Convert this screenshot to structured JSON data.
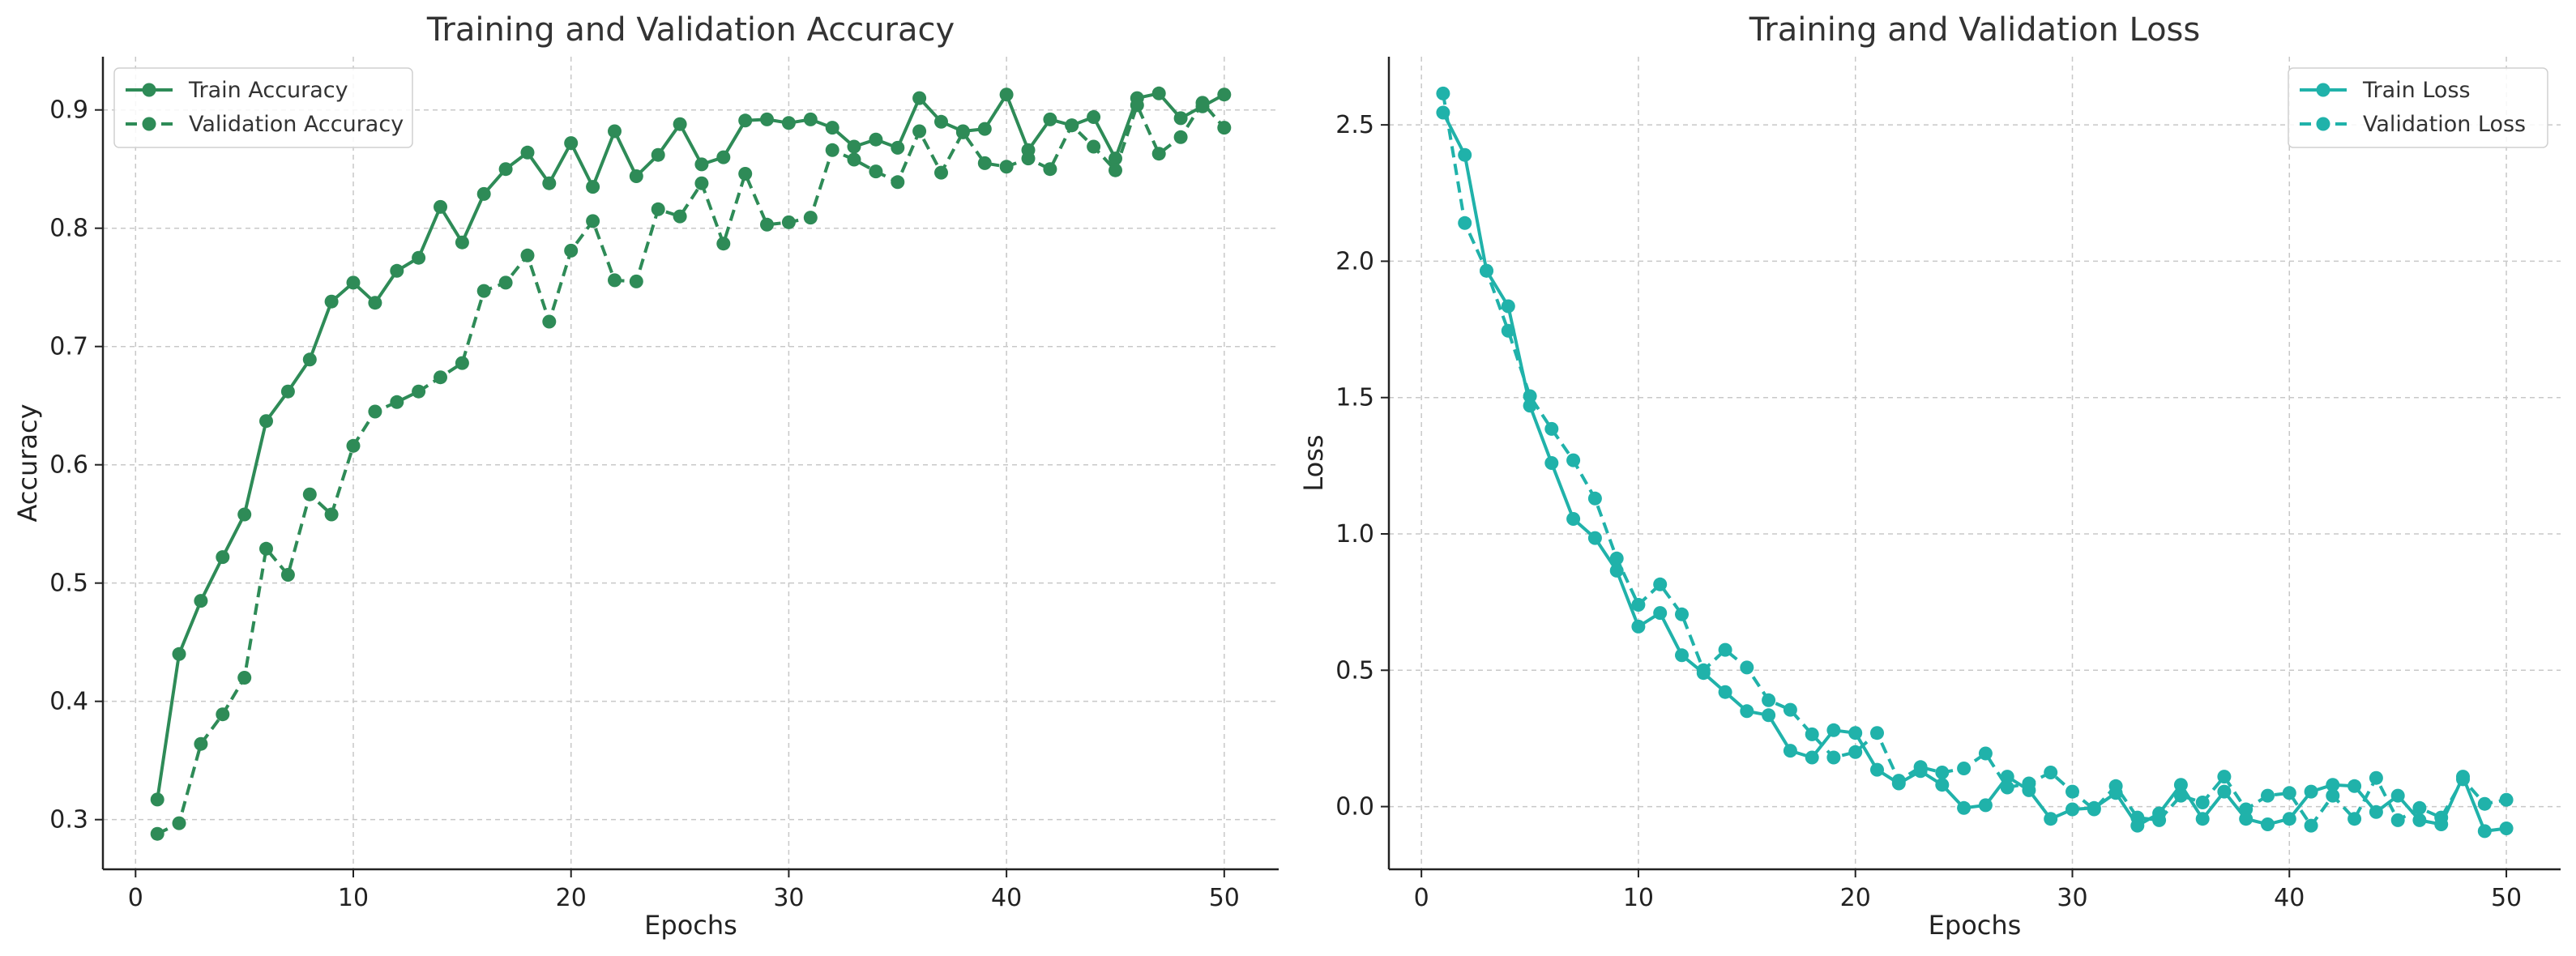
{
  "colors": {
    "accuracy": "#2e8b57",
    "loss": "#20b2aa"
  },
  "chart_data": [
    {
      "type": "line",
      "title": "Training and Validation Accuracy",
      "xlabel": "Epochs",
      "ylabel": "Accuracy",
      "xlim": [
        -1.5,
        52.5
      ],
      "ylim": [
        0.258,
        0.945
      ],
      "xticks": [
        0,
        10,
        20,
        30,
        40,
        50
      ],
      "yticks": [
        0.3,
        0.4,
        0.5,
        0.6,
        0.7,
        0.8,
        0.9
      ],
      "grid": true,
      "legend_position": "upper-left",
      "x": [
        1,
        2,
        3,
        4,
        5,
        6,
        7,
        8,
        9,
        10,
        11,
        12,
        13,
        14,
        15,
        16,
        17,
        18,
        19,
        20,
        21,
        22,
        23,
        24,
        25,
        26,
        27,
        28,
        29,
        30,
        31,
        32,
        33,
        34,
        35,
        36,
        37,
        38,
        39,
        40,
        41,
        42,
        43,
        44,
        45,
        46,
        47,
        48,
        49,
        50
      ],
      "series": [
        {
          "name": "Train Accuracy",
          "style": "solid",
          "color": "#2e8b57",
          "values": [
            0.317,
            0.44,
            0.485,
            0.522,
            0.558,
            0.637,
            0.662,
            0.689,
            0.738,
            0.754,
            0.737,
            0.764,
            0.775,
            0.818,
            0.788,
            0.829,
            0.85,
            0.864,
            0.838,
            0.872,
            0.835,
            0.882,
            0.844,
            0.862,
            0.888,
            0.854,
            0.86,
            0.891,
            0.892,
            0.889,
            0.892,
            0.885,
            0.869,
            0.875,
            0.868,
            0.91,
            0.89,
            0.882,
            0.884,
            0.913,
            0.866,
            0.892,
            0.887,
            0.894,
            0.859,
            0.91,
            0.914,
            0.893,
            0.903,
            0.913
          ]
        },
        {
          "name": "Validation Accuracy",
          "style": "dashed",
          "color": "#2e8b57",
          "values": [
            0.288,
            0.297,
            0.364,
            0.389,
            0.42,
            0.529,
            0.507,
            0.575,
            0.558,
            0.616,
            0.645,
            0.653,
            0.662,
            0.674,
            0.686,
            0.747,
            0.754,
            0.777,
            0.721,
            0.781,
            0.806,
            0.756,
            0.755,
            0.816,
            0.81,
            0.838,
            0.787,
            0.846,
            0.803,
            0.805,
            0.809,
            0.866,
            0.858,
            0.848,
            0.839,
            0.882,
            0.847,
            0.881,
            0.855,
            0.852,
            0.859,
            0.85,
            0.887,
            0.869,
            0.849,
            0.904,
            0.863,
            0.877,
            0.906,
            0.885
          ]
        }
      ]
    },
    {
      "type": "line",
      "title": "Training and Validation Loss",
      "xlabel": "Epochs",
      "ylabel": "Loss",
      "xlim": [
        -1.5,
        52.5
      ],
      "ylim": [
        -0.23,
        2.75
      ],
      "xticks": [
        0,
        10,
        20,
        30,
        40,
        50
      ],
      "yticks": [
        0.0,
        0.5,
        1.0,
        1.5,
        2.0,
        2.5
      ],
      "ytick_labels": [
        "0.0",
        "0.5",
        "1.0",
        "1.5",
        "2.0",
        "2.5"
      ],
      "grid": true,
      "legend_position": "upper-right",
      "x": [
        1,
        2,
        3,
        4,
        5,
        6,
        7,
        8,
        9,
        10,
        11,
        12,
        13,
        14,
        15,
        16,
        17,
        18,
        19,
        20,
        21,
        22,
        23,
        24,
        25,
        26,
        27,
        28,
        29,
        30,
        31,
        32,
        33,
        34,
        35,
        36,
        37,
        38,
        39,
        40,
        41,
        42,
        43,
        44,
        45,
        46,
        47,
        48,
        49,
        50
      ],
      "series": [
        {
          "name": "Train Loss",
          "style": "solid",
          "color": "#20b2aa",
          "values": [
            2.545,
            2.39,
            1.965,
            1.835,
            1.47,
            1.26,
            1.055,
            0.985,
            0.865,
            0.66,
            0.71,
            0.555,
            0.49,
            0.42,
            0.35,
            0.335,
            0.205,
            0.18,
            0.28,
            0.27,
            0.135,
            0.085,
            0.13,
            0.08,
            -0.005,
            0.005,
            0.11,
            0.06,
            -0.045,
            -0.01,
            -0.005,
            0.05,
            -0.07,
            -0.025,
            0.08,
            -0.045,
            0.055,
            -0.045,
            -0.065,
            -0.045,
            0.055,
            0.08,
            0.075,
            -0.02,
            0.04,
            -0.05,
            -0.065,
            0.11,
            -0.09,
            -0.08
          ]
        },
        {
          "name": "Validation Loss",
          "style": "dashed",
          "color": "#20b2aa",
          "values": [
            2.615,
            2.14,
            1.965,
            1.745,
            1.505,
            1.385,
            1.27,
            1.13,
            0.91,
            0.74,
            0.815,
            0.705,
            0.5,
            0.575,
            0.51,
            0.39,
            0.355,
            0.265,
            0.18,
            0.2,
            0.27,
            0.095,
            0.145,
            0.125,
            0.14,
            0.195,
            0.07,
            0.085,
            0.125,
            0.055,
            -0.01,
            0.075,
            -0.04,
            -0.05,
            0.04,
            0.015,
            0.11,
            -0.01,
            0.04,
            0.05,
            -0.07,
            0.04,
            -0.045,
            0.105,
            -0.05,
            -0.005,
            -0.04,
            0.1,
            0.01,
            0.025
          ]
        }
      ]
    }
  ]
}
